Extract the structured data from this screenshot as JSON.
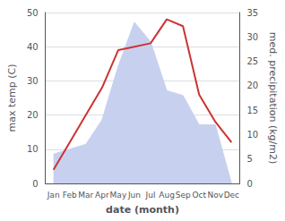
{
  "chart_data": {
    "type": "line",
    "categories": [
      "Jan",
      "Feb",
      "Mar",
      "Apr",
      "May",
      "Jun",
      "Jul",
      "Aug",
      "Sep",
      "Oct",
      "Nov",
      "Dec"
    ],
    "xlabel": "date (month)",
    "ylabel": "max temp (C)",
    "y2label": "med. precipitation (kg/m2)",
    "series": [
      {
        "type": "area",
        "axis": "y2",
        "color": "#c8d0f0",
        "values": [
          6,
          7,
          8,
          13,
          24,
          33,
          29,
          19,
          18,
          12,
          12,
          0
        ]
      },
      {
        "type": "line",
        "color": "#cc3333",
        "values": [
          4,
          12,
          20,
          28,
          39,
          40,
          41,
          48,
          46,
          26,
          18,
          12
        ]
      }
    ],
    "ylim": [
      0,
      50
    ],
    "yticks": [
      0,
      10,
      20,
      30,
      40,
      50
    ],
    "y2lim": [
      0,
      35
    ],
    "y2ticks": [
      0,
      5,
      10,
      15,
      20,
      25,
      30,
      35
    ],
    "grid": true
  }
}
